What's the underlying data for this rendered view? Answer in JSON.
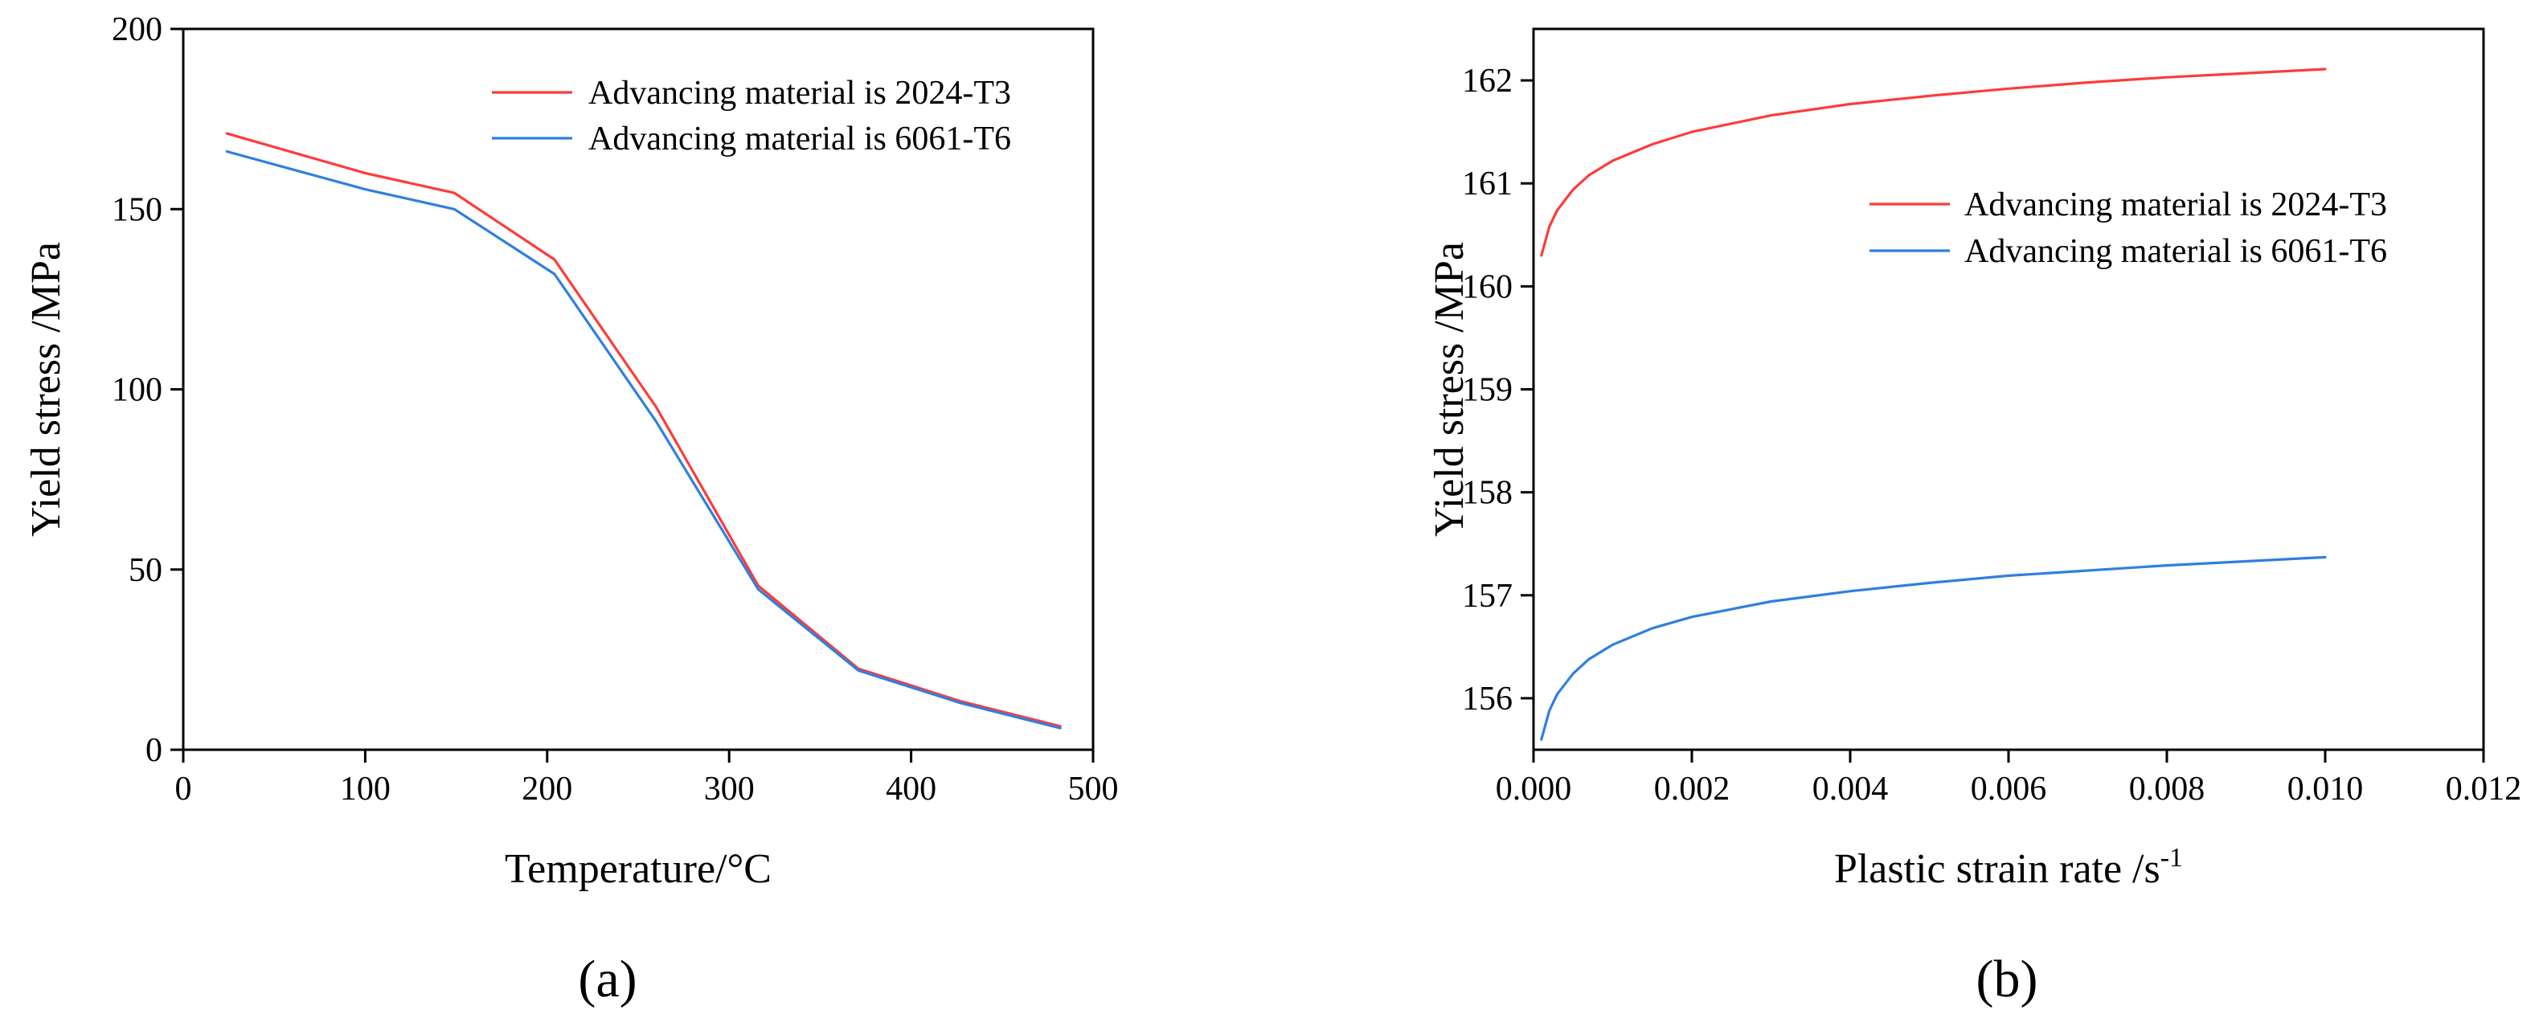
{
  "chart_data": [
    {
      "type": "line",
      "panel_label": "(a)",
      "xlabel": "Temperature/°C",
      "ylabel": "Yield stress /MPa",
      "xlim": [
        0,
        500
      ],
      "ylim": [
        0,
        200
      ],
      "x_ticks": [
        0,
        100,
        200,
        300,
        400,
        500
      ],
      "y_ticks": [
        0,
        50,
        100,
        150,
        200
      ],
      "legend_position": "top-right",
      "series": [
        {
          "name": "Advancing material is 2024-T3",
          "color": "#ff3b3b",
          "x": [
            24,
            100,
            149,
            204,
            260,
            316,
            371,
            427,
            482
          ],
          "y": [
            171,
            160,
            154.5,
            136,
            95,
            45.5,
            22.5,
            13.5,
            6.5
          ]
        },
        {
          "name": "Advancing material is 6061-T6",
          "color": "#2f7fe0",
          "x": [
            24,
            100,
            149,
            204,
            260,
            316,
            371,
            427,
            482
          ],
          "y": [
            166,
            155.5,
            150,
            132,
            91,
            44.5,
            22,
            13,
            6
          ]
        }
      ]
    },
    {
      "type": "line",
      "panel_label": "(b)",
      "xlabel": "Plastic strain rate /s",
      "xlabel_superscript": "-1",
      "ylabel": "Yield stress /MPa",
      "xlim": [
        0.0,
        0.012
      ],
      "ylim": [
        155.5,
        162.5
      ],
      "x_ticks": [
        "0.000",
        "0.002",
        "0.004",
        "0.006",
        "0.008",
        "0.010",
        "0.012"
      ],
      "y_ticks": [
        156,
        157,
        158,
        159,
        160,
        161,
        162
      ],
      "legend_position": "upper-right",
      "series": [
        {
          "name": "Advancing material is 2024-T3",
          "color": "#ff3b3b",
          "x": [
            0.0001,
            0.0002,
            0.0003,
            0.0005,
            0.0007,
            0.001,
            0.0015,
            0.002,
            0.003,
            0.004,
            0.005,
            0.006,
            0.007,
            0.008,
            0.009,
            0.01
          ],
          "y": [
            160.3,
            160.58,
            160.74,
            160.94,
            161.08,
            161.22,
            161.38,
            161.5,
            161.66,
            161.77,
            161.85,
            161.92,
            161.98,
            162.03,
            162.07,
            162.11
          ]
        },
        {
          "name": "Advancing material is 6061-T6",
          "color": "#2f7fe0",
          "x": [
            0.0001,
            0.0002,
            0.0003,
            0.0005,
            0.0007,
            0.001,
            0.0015,
            0.002,
            0.003,
            0.004,
            0.005,
            0.006,
            0.007,
            0.008,
            0.009,
            0.01
          ],
          "y": [
            155.6,
            155.88,
            156.04,
            156.24,
            156.38,
            156.52,
            156.68,
            156.79,
            156.94,
            157.04,
            157.12,
            157.19,
            157.24,
            157.29,
            157.33,
            157.37
          ]
        }
      ]
    }
  ]
}
